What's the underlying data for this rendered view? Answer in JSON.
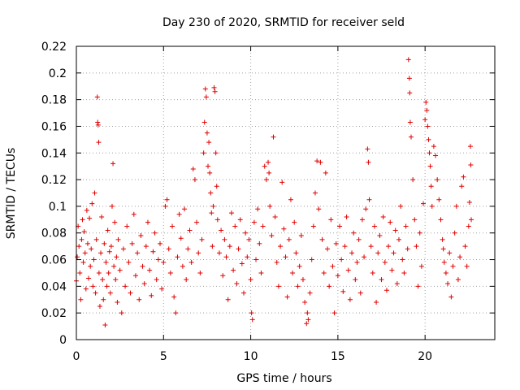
{
  "chart_data": {
    "type": "scatter",
    "title": "Day 230 of 2020, SRMTID for receiver seld",
    "xlabel": "GPS time / hours",
    "ylabel": "SRMTID / TECUs",
    "xlim": [
      0,
      24
    ],
    "ylim": [
      0,
      0.22
    ],
    "xticks": [
      0,
      5,
      10,
      15,
      20
    ],
    "xtick_labels": [
      "0",
      "5",
      "10",
      "15",
      "20"
    ],
    "yticks": [
      0,
      0.02,
      0.04,
      0.06,
      0.08,
      0.1,
      0.12,
      0.14,
      0.16,
      0.18,
      0.2,
      0.22
    ],
    "ytick_labels": [
      "0",
      "0.02",
      "0.04",
      "0.06",
      "0.08",
      "0.1",
      "0.12",
      "0.14",
      "0.16",
      "0.18",
      "0.2",
      "0.22"
    ],
    "grid": true,
    "marker": "+",
    "color": "#e00000",
    "series": [
      {
        "name": "SRMTID",
        "points": [
          [
            0.0,
            0.044
          ],
          [
            0.05,
            0.062
          ],
          [
            0.1,
            0.085
          ],
          [
            0.15,
            0.07
          ],
          [
            0.2,
            0.05
          ],
          [
            0.25,
            0.03
          ],
          [
            0.3,
            0.075
          ],
          [
            0.35,
            0.09
          ],
          [
            0.4,
            0.058
          ],
          [
            0.45,
            0.081
          ],
          [
            0.5,
            0.065
          ],
          [
            0.55,
            0.038
          ],
          [
            0.6,
            0.097
          ],
          [
            0.65,
            0.072
          ],
          [
            0.7,
            0.046
          ],
          [
            0.75,
            0.091
          ],
          [
            0.8,
            0.055
          ],
          [
            0.85,
            0.068
          ],
          [
            0.9,
            0.102
          ],
          [
            0.95,
            0.04
          ],
          [
            1.0,
            0.06
          ],
          [
            1.05,
            0.11
          ],
          [
            1.1,
            0.035
          ],
          [
            1.15,
            0.075
          ],
          [
            1.2,
            0.182
          ],
          [
            1.22,
            0.163
          ],
          [
            1.25,
            0.161
          ],
          [
            1.28,
            0.148
          ],
          [
            1.3,
            0.05
          ],
          [
            1.35,
            0.025
          ],
          [
            1.4,
            0.065
          ],
          [
            1.45,
            0.092
          ],
          [
            1.5,
            0.045
          ],
          [
            1.55,
            0.03
          ],
          [
            1.6,
            0.072
          ],
          [
            1.65,
            0.011
          ],
          [
            1.7,
            0.058
          ],
          [
            1.75,
            0.04
          ],
          [
            1.8,
            0.082
          ],
          [
            1.85,
            0.05
          ],
          [
            1.9,
            0.066
          ],
          [
            1.95,
            0.035
          ],
          [
            2.0,
            0.07
          ],
          [
            2.05,
            0.1
          ],
          [
            2.1,
            0.132
          ],
          [
            2.15,
            0.055
          ],
          [
            2.2,
            0.088
          ],
          [
            2.25,
            0.045
          ],
          [
            2.3,
            0.062
          ],
          [
            2.35,
            0.028
          ],
          [
            2.4,
            0.075
          ],
          [
            2.5,
            0.052
          ],
          [
            2.6,
            0.02
          ],
          [
            2.7,
            0.068
          ],
          [
            2.8,
            0.04
          ],
          [
            2.9,
            0.085
          ],
          [
            3.0,
            0.058
          ],
          [
            3.1,
            0.035
          ],
          [
            3.2,
            0.072
          ],
          [
            3.3,
            0.094
          ],
          [
            3.4,
            0.048
          ],
          [
            3.5,
            0.065
          ],
          [
            3.6,
            0.03
          ],
          [
            3.7,
            0.078
          ],
          [
            3.8,
            0.055
          ],
          [
            3.9,
            0.042
          ],
          [
            4.0,
            0.07
          ],
          [
            4.1,
            0.088
          ],
          [
            4.2,
            0.052
          ],
          [
            4.3,
            0.033
          ],
          [
            4.4,
            0.066
          ],
          [
            4.5,
            0.08
          ],
          [
            4.6,
            0.045
          ],
          [
            4.7,
            0.06
          ],
          [
            4.8,
            0.072
          ],
          [
            4.9,
            0.038
          ],
          [
            5.0,
            0.058
          ],
          [
            5.1,
            0.1
          ],
          [
            5.2,
            0.105
          ],
          [
            5.3,
            0.068
          ],
          [
            5.4,
            0.05
          ],
          [
            5.5,
            0.085
          ],
          [
            5.6,
            0.032
          ],
          [
            5.7,
            0.02
          ],
          [
            5.8,
            0.062
          ],
          [
            5.9,
            0.094
          ],
          [
            6.0,
            0.076
          ],
          [
            6.1,
            0.055
          ],
          [
            6.2,
            0.098
          ],
          [
            6.3,
            0.045
          ],
          [
            6.4,
            0.068
          ],
          [
            6.5,
            0.082
          ],
          [
            6.6,
            0.058
          ],
          [
            6.7,
            0.128
          ],
          [
            6.8,
            0.12
          ],
          [
            6.9,
            0.088
          ],
          [
            7.0,
            0.065
          ],
          [
            7.1,
            0.05
          ],
          [
            7.2,
            0.075
          ],
          [
            7.3,
            0.14
          ],
          [
            7.35,
            0.163
          ],
          [
            7.4,
            0.188
          ],
          [
            7.45,
            0.182
          ],
          [
            7.5,
            0.155
          ],
          [
            7.55,
            0.13
          ],
          [
            7.6,
            0.148
          ],
          [
            7.65,
            0.125
          ],
          [
            7.7,
            0.11
          ],
          [
            7.75,
            0.095
          ],
          [
            7.8,
            0.07
          ],
          [
            7.85,
            0.1
          ],
          [
            7.9,
            0.189
          ],
          [
            7.95,
            0.186
          ],
          [
            8.0,
            0.14
          ],
          [
            8.05,
            0.115
          ],
          [
            8.1,
            0.09
          ],
          [
            8.2,
            0.065
          ],
          [
            8.3,
            0.082
          ],
          [
            8.4,
            0.048
          ],
          [
            8.5,
            0.075
          ],
          [
            8.6,
            0.062
          ],
          [
            8.7,
            0.03
          ],
          [
            8.8,
            0.07
          ],
          [
            8.9,
            0.095
          ],
          [
            9.0,
            0.052
          ],
          [
            9.1,
            0.085
          ],
          [
            9.2,
            0.042
          ],
          [
            9.3,
            0.068
          ],
          [
            9.4,
            0.09
          ],
          [
            9.5,
            0.057
          ],
          [
            9.6,
            0.035
          ],
          [
            9.7,
            0.08
          ],
          [
            9.8,
            0.062
          ],
          [
            9.9,
            0.075
          ],
          [
            10.0,
            0.045
          ],
          [
            10.05,
            0.02
          ],
          [
            10.1,
            0.015
          ],
          [
            10.2,
            0.088
          ],
          [
            10.3,
            0.06
          ],
          [
            10.4,
            0.098
          ],
          [
            10.5,
            0.072
          ],
          [
            10.6,
            0.05
          ],
          [
            10.7,
            0.085
          ],
          [
            10.8,
            0.13
          ],
          [
            10.9,
            0.12
          ],
          [
            11.0,
            0.133
          ],
          [
            11.05,
            0.125
          ],
          [
            11.1,
            0.1
          ],
          [
            11.2,
            0.078
          ],
          [
            11.3,
            0.152
          ],
          [
            11.4,
            0.092
          ],
          [
            11.5,
            0.058
          ],
          [
            11.6,
            0.04
          ],
          [
            11.7,
            0.07
          ],
          [
            11.8,
            0.118
          ],
          [
            11.9,
            0.083
          ],
          [
            12.0,
            0.062
          ],
          [
            12.1,
            0.032
          ],
          [
            12.2,
            0.075
          ],
          [
            12.3,
            0.105
          ],
          [
            12.4,
            0.05
          ],
          [
            12.5,
            0.088
          ],
          [
            12.6,
            0.065
          ],
          [
            12.7,
            0.04
          ],
          [
            12.8,
            0.055
          ],
          [
            12.9,
            0.078
          ],
          [
            13.0,
            0.045
          ],
          [
            13.1,
            0.028
          ],
          [
            13.2,
            0.012
          ],
          [
            13.25,
            0.02
          ],
          [
            13.3,
            0.015
          ],
          [
            13.4,
            0.035
          ],
          [
            13.5,
            0.06
          ],
          [
            13.6,
            0.085
          ],
          [
            13.7,
            0.11
          ],
          [
            13.8,
            0.134
          ],
          [
            13.9,
            0.098
          ],
          [
            14.0,
            0.133
          ],
          [
            14.1,
            0.075
          ],
          [
            14.2,
            0.05
          ],
          [
            14.3,
            0.125
          ],
          [
            14.4,
            0.068
          ],
          [
            14.5,
            0.04
          ],
          [
            14.6,
            0.09
          ],
          [
            14.7,
            0.055
          ],
          [
            14.8,
            0.02
          ],
          [
            14.9,
            0.072
          ],
          [
            15.0,
            0.048
          ],
          [
            15.1,
            0.085
          ],
          [
            15.2,
            0.06
          ],
          [
            15.3,
            0.036
          ],
          [
            15.4,
            0.07
          ],
          [
            15.5,
            0.092
          ],
          [
            15.6,
            0.052
          ],
          [
            15.7,
            0.03
          ],
          [
            15.8,
            0.065
          ],
          [
            15.9,
            0.08
          ],
          [
            16.0,
            0.045
          ],
          [
            16.1,
            0.058
          ],
          [
            16.2,
            0.075
          ],
          [
            16.3,
            0.035
          ],
          [
            16.4,
            0.09
          ],
          [
            16.5,
            0.062
          ],
          [
            16.6,
            0.098
          ],
          [
            16.7,
            0.143
          ],
          [
            16.75,
            0.133
          ],
          [
            16.8,
            0.105
          ],
          [
            16.9,
            0.07
          ],
          [
            17.0,
            0.05
          ],
          [
            17.1,
            0.085
          ],
          [
            17.2,
            0.028
          ],
          [
            17.3,
            0.065
          ],
          [
            17.4,
            0.078
          ],
          [
            17.5,
            0.045
          ],
          [
            17.6,
            0.092
          ],
          [
            17.7,
            0.058
          ],
          [
            17.8,
            0.037
          ],
          [
            17.9,
            0.07
          ],
          [
            18.0,
            0.088
          ],
          [
            18.1,
            0.052
          ],
          [
            18.2,
            0.065
          ],
          [
            18.3,
            0.082
          ],
          [
            18.4,
            0.042
          ],
          [
            18.5,
            0.075
          ],
          [
            18.6,
            0.1
          ],
          [
            18.7,
            0.06
          ],
          [
            18.8,
            0.05
          ],
          [
            18.9,
            0.085
          ],
          [
            19.0,
            0.068
          ],
          [
            19.05,
            0.21
          ],
          [
            19.1,
            0.196
          ],
          [
            19.12,
            0.185
          ],
          [
            19.15,
            0.163
          ],
          [
            19.2,
            0.152
          ],
          [
            19.3,
            0.12
          ],
          [
            19.4,
            0.09
          ],
          [
            19.5,
            0.07
          ],
          [
            19.6,
            0.04
          ],
          [
            19.7,
            0.08
          ],
          [
            19.8,
            0.055
          ],
          [
            19.9,
            0.102
          ],
          [
            20.0,
            0.165
          ],
          [
            20.05,
            0.178
          ],
          [
            20.1,
            0.172
          ],
          [
            20.15,
            0.16
          ],
          [
            20.2,
            0.15
          ],
          [
            20.25,
            0.14
          ],
          [
            20.3,
            0.13
          ],
          [
            20.35,
            0.115
          ],
          [
            20.4,
            0.1
          ],
          [
            20.5,
            0.145
          ],
          [
            20.6,
            0.138
          ],
          [
            20.7,
            0.12
          ],
          [
            20.8,
            0.105
          ],
          [
            20.9,
            0.09
          ],
          [
            21.0,
            0.075
          ],
          [
            21.05,
            0.068
          ],
          [
            21.1,
            0.058
          ],
          [
            21.2,
            0.05
          ],
          [
            21.3,
            0.042
          ],
          [
            21.4,
            0.065
          ],
          [
            21.5,
            0.032
          ],
          [
            21.6,
            0.055
          ],
          [
            21.7,
            0.08
          ],
          [
            21.8,
            0.1
          ],
          [
            21.9,
            0.045
          ],
          [
            22.0,
            0.062
          ],
          [
            22.1,
            0.115
          ],
          [
            22.2,
            0.122
          ],
          [
            22.3,
            0.07
          ],
          [
            22.4,
            0.055
          ],
          [
            22.5,
            0.085
          ],
          [
            22.55,
            0.103
          ],
          [
            22.6,
            0.145
          ],
          [
            22.62,
            0.131
          ],
          [
            22.65,
            0.09
          ]
        ]
      }
    ]
  }
}
